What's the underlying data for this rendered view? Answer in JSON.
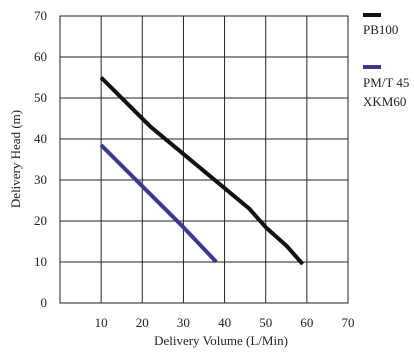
{
  "chart_data": {
    "type": "line",
    "xlabel": "Delivery Volume (L/Min)",
    "ylabel": "Delivery Head (m)",
    "xlim": [
      0,
      70
    ],
    "ylim": [
      0,
      70
    ],
    "xticks": [
      "10",
      "20",
      "30",
      "40",
      "50",
      "60",
      "70"
    ],
    "yticks": [
      "0",
      "10",
      "20",
      "30",
      "40",
      "50",
      "60",
      "70"
    ],
    "grid": true,
    "legend_position": "right",
    "series": [
      {
        "name": "PB100",
        "color": "#111111",
        "points": [
          [
            10,
            55
          ],
          [
            13,
            52
          ],
          [
            17,
            48
          ],
          [
            22,
            43
          ],
          [
            28,
            38
          ],
          [
            34,
            33
          ],
          [
            40,
            28
          ],
          [
            46,
            23
          ],
          [
            50,
            18.5
          ],
          [
            55,
            14
          ],
          [
            59,
            9.5
          ]
        ]
      },
      {
        "name": "PM/T 45",
        "color": "#3c3a8c",
        "points": [
          [
            10,
            38.5
          ],
          [
            20,
            28.5
          ],
          [
            30,
            18.5
          ],
          [
            38,
            10
          ]
        ]
      }
    ],
    "legend_extra": "XKM60"
  }
}
